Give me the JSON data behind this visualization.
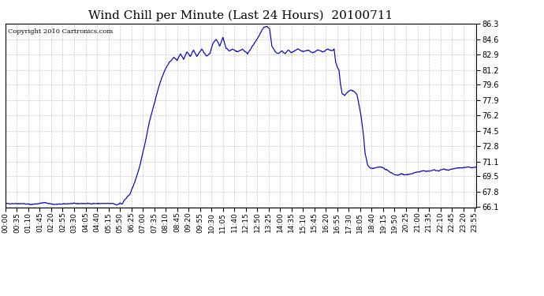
{
  "title": "Wind Chill per Minute (Last 24 Hours)  20100711",
  "copyright": "Copyright 2010 Cartronics.com",
  "line_color": "#0000cc",
  "bg_color": "#ffffff",
  "grid_color": "#c8c8c8",
  "ylim": [
    66.1,
    86.3
  ],
  "yticks": [
    66.1,
    67.8,
    69.5,
    71.1,
    72.8,
    74.5,
    76.2,
    77.9,
    79.6,
    81.2,
    82.9,
    84.6,
    86.3
  ],
  "xlabel_fontsize": 6.5,
  "ylabel_fontsize": 7,
  "title_fontsize": 11,
  "x_tick_labels": [
    "00:00",
    "00:35",
    "01:10",
    "01:45",
    "02:20",
    "02:55",
    "03:30",
    "04:05",
    "04:40",
    "05:15",
    "05:50",
    "06:25",
    "07:00",
    "07:35",
    "08:10",
    "08:45",
    "09:20",
    "09:55",
    "10:30",
    "11:05",
    "11:40",
    "12:15",
    "12:50",
    "13:25",
    "14:00",
    "14:35",
    "15:10",
    "15:45",
    "16:20",
    "16:55",
    "17:30",
    "18:05",
    "18:40",
    "19:15",
    "19:50",
    "20:25",
    "21:00",
    "21:35",
    "22:10",
    "22:45",
    "23:20",
    "23:55"
  ],
  "keypoints": [
    [
      0,
      66.5
    ],
    [
      50,
      66.5
    ],
    [
      80,
      66.4
    ],
    [
      120,
      66.6
    ],
    [
      150,
      66.4
    ],
    [
      200,
      66.5
    ],
    [
      250,
      66.5
    ],
    [
      300,
      66.5
    ],
    [
      330,
      66.5
    ],
    [
      340,
      66.35
    ],
    [
      350,
      66.55
    ],
    [
      355,
      66.45
    ],
    [
      358,
      66.5
    ],
    [
      362,
      66.8
    ],
    [
      380,
      67.5
    ],
    [
      395,
      68.8
    ],
    [
      410,
      70.5
    ],
    [
      425,
      72.8
    ],
    [
      440,
      75.5
    ],
    [
      455,
      77.5
    ],
    [
      470,
      79.5
    ],
    [
      485,
      81.0
    ],
    [
      500,
      82.0
    ],
    [
      515,
      82.6
    ],
    [
      525,
      82.3
    ],
    [
      535,
      83.0
    ],
    [
      545,
      82.4
    ],
    [
      555,
      83.2
    ],
    [
      565,
      82.7
    ],
    [
      575,
      83.4
    ],
    [
      585,
      82.7
    ],
    [
      600,
      83.5
    ],
    [
      615,
      82.7
    ],
    [
      625,
      83.0
    ],
    [
      635,
      84.2
    ],
    [
      645,
      84.6
    ],
    [
      655,
      83.8
    ],
    [
      665,
      84.8
    ],
    [
      675,
      83.6
    ],
    [
      685,
      83.3
    ],
    [
      695,
      83.5
    ],
    [
      710,
      83.2
    ],
    [
      725,
      83.5
    ],
    [
      740,
      83.0
    ],
    [
      755,
      83.8
    ],
    [
      770,
      84.6
    ],
    [
      780,
      85.3
    ],
    [
      790,
      85.9
    ],
    [
      800,
      86.0
    ],
    [
      808,
      85.7
    ],
    [
      815,
      83.8
    ],
    [
      825,
      83.2
    ],
    [
      835,
      83.0
    ],
    [
      845,
      83.3
    ],
    [
      855,
      83.0
    ],
    [
      865,
      83.4
    ],
    [
      875,
      83.1
    ],
    [
      885,
      83.3
    ],
    [
      895,
      83.5
    ],
    [
      910,
      83.2
    ],
    [
      925,
      83.4
    ],
    [
      940,
      83.1
    ],
    [
      955,
      83.4
    ],
    [
      970,
      83.2
    ],
    [
      985,
      83.5
    ],
    [
      1000,
      83.3
    ],
    [
      1005,
      83.5
    ],
    [
      1010,
      82.0
    ],
    [
      1015,
      81.5
    ],
    [
      1020,
      81.2
    ],
    [
      1025,
      79.5
    ],
    [
      1030,
      78.6
    ],
    [
      1038,
      78.4
    ],
    [
      1045,
      78.7
    ],
    [
      1055,
      79.0
    ],
    [
      1065,
      78.9
    ],
    [
      1075,
      78.5
    ],
    [
      1082,
      77.2
    ],
    [
      1088,
      76.0
    ],
    [
      1095,
      74.0
    ],
    [
      1100,
      72.0
    ],
    [
      1108,
      70.7
    ],
    [
      1115,
      70.4
    ],
    [
      1120,
      70.35
    ],
    [
      1130,
      70.4
    ],
    [
      1140,
      70.5
    ],
    [
      1150,
      70.55
    ],
    [
      1160,
      70.3
    ],
    [
      1175,
      70.0
    ],
    [
      1190,
      69.7
    ],
    [
      1200,
      69.6
    ],
    [
      1210,
      69.8
    ],
    [
      1220,
      69.65
    ],
    [
      1235,
      69.7
    ],
    [
      1250,
      69.9
    ],
    [
      1265,
      70.0
    ],
    [
      1280,
      70.1
    ],
    [
      1295,
      70.05
    ],
    [
      1310,
      70.2
    ],
    [
      1325,
      70.1
    ],
    [
      1340,
      70.3
    ],
    [
      1355,
      70.2
    ],
    [
      1370,
      70.35
    ],
    [
      1385,
      70.4
    ],
    [
      1400,
      70.45
    ],
    [
      1415,
      70.5
    ],
    [
      1430,
      70.45
    ],
    [
      1439,
      70.5
    ]
  ]
}
